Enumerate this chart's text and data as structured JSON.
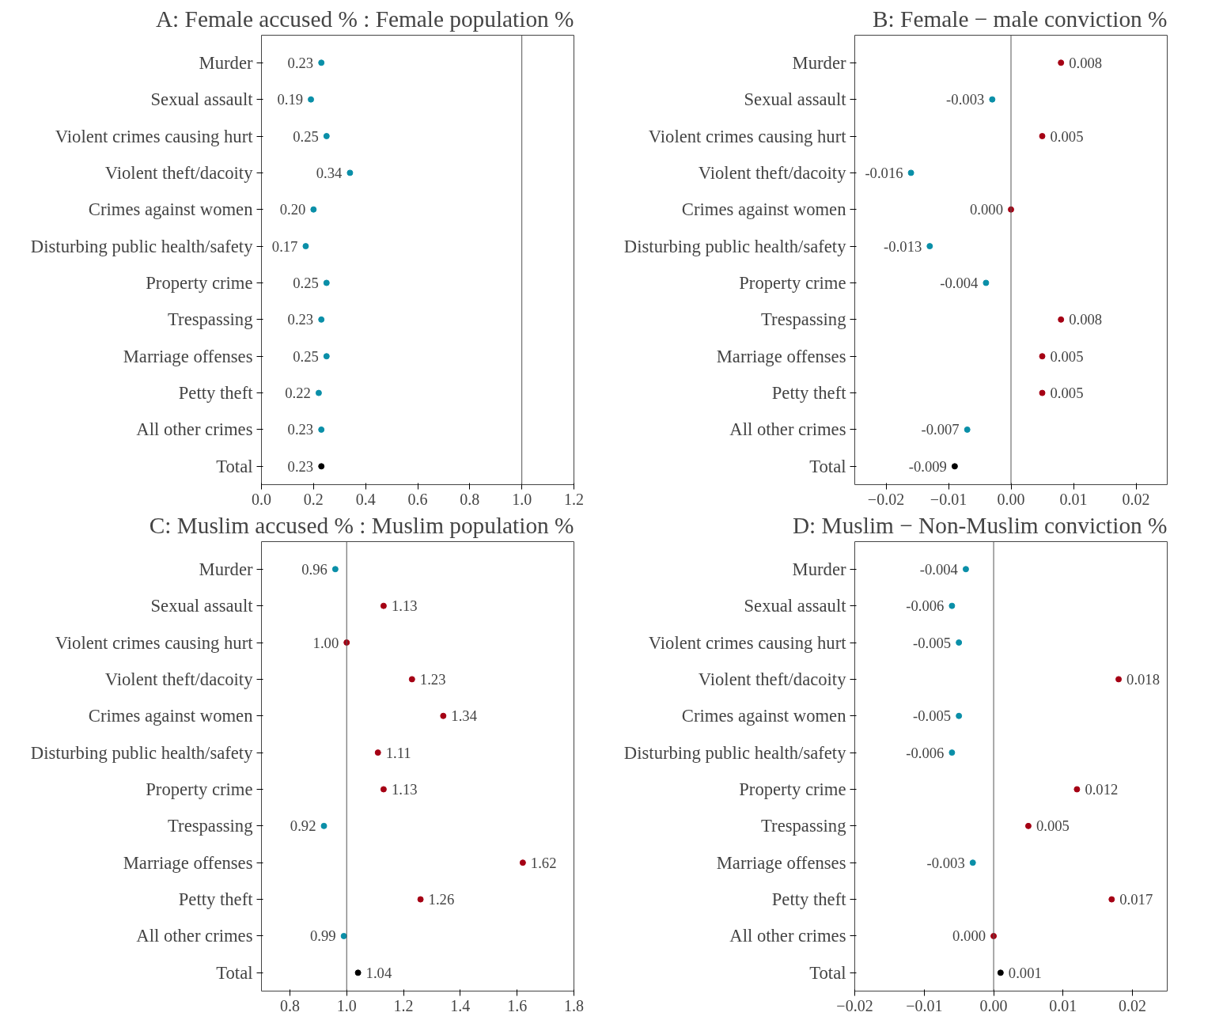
{
  "chart_data": [
    {
      "type": "scatter",
      "title": "A: Female accused % : Female population %",
      "orientation": "horizontal",
      "categories": [
        "Murder",
        "Sexual assault",
        "Violent crimes causing hurt",
        "Violent theft/dacoity",
        "Crimes against women",
        "Disturbing public health/safety",
        "Property crime",
        "Trespassing",
        "Marriage offenses",
        "Petty theft",
        "All other crimes",
        "Total"
      ],
      "values": [
        0.23,
        0.19,
        0.25,
        0.34,
        0.2,
        0.17,
        0.25,
        0.23,
        0.25,
        0.22,
        0.23,
        0.23
      ],
      "value_labels": [
        "0.23",
        "0.19",
        "0.25",
        "0.34",
        "0.20",
        "0.17",
        "0.25",
        "0.23",
        "0.25",
        "0.22",
        "0.23",
        "0.23"
      ],
      "colors": [
        "#0a8fa8",
        "#0a8fa8",
        "#0a8fa8",
        "#0a8fa8",
        "#0a8fa8",
        "#0a8fa8",
        "#0a8fa8",
        "#0a8fa8",
        "#0a8fa8",
        "#0a8fa8",
        "#0a8fa8",
        "#000000"
      ],
      "xlim": [
        0.0,
        1.2
      ],
      "xticks": [
        {
          "value": 0.0,
          "label": "0.0"
        },
        {
          "value": 0.2,
          "label": "0.2"
        },
        {
          "value": 0.4,
          "label": "0.4"
        },
        {
          "value": 0.6,
          "label": "0.6"
        },
        {
          "value": 0.8,
          "label": "0.8"
        },
        {
          "value": 1.0,
          "label": "1.0"
        },
        {
          "value": 1.2,
          "label": "1.2"
        }
      ],
      "ref_lines": [
        {
          "axis": "x",
          "value": 1.0,
          "color": "#555555",
          "line_style": "solid"
        }
      ],
      "marker": "circle",
      "grid": false
    },
    {
      "type": "scatter",
      "title": "B: Female − male conviction %",
      "orientation": "horizontal",
      "categories": [
        "Murder",
        "Sexual assault",
        "Violent crimes causing hurt",
        "Violent theft/dacoity",
        "Crimes against women",
        "Disturbing public health/safety",
        "Property crime",
        "Trespassing",
        "Marriage offenses",
        "Petty theft",
        "All other crimes",
        "Total"
      ],
      "values": [
        0.008,
        -0.003,
        0.005,
        -0.016,
        0.0,
        -0.013,
        -0.004,
        0.008,
        0.005,
        0.005,
        -0.007,
        -0.009
      ],
      "value_labels": [
        "0.008",
        "-0.003",
        "0.005",
        "-0.016",
        "0.000",
        "-0.013",
        "-0.004",
        "0.008",
        "0.005",
        "0.005",
        "-0.007",
        "-0.009"
      ],
      "colors": [
        "#a50014",
        "#0a8fa8",
        "#a50014",
        "#0a8fa8",
        "#a50014",
        "#0a8fa8",
        "#0a8fa8",
        "#a50014",
        "#a50014",
        "#a50014",
        "#0a8fa8",
        "#000000"
      ],
      "xlim": [
        -0.025,
        0.025
      ],
      "xticks": [
        {
          "value": -0.02,
          "label": "−0.02"
        },
        {
          "value": -0.01,
          "label": "−0.01"
        },
        {
          "value": 0.0,
          "label": "0.00"
        },
        {
          "value": 0.01,
          "label": "0.01"
        },
        {
          "value": 0.02,
          "label": "0.02"
        }
      ],
      "ref_lines": [
        {
          "axis": "x",
          "value": 0.0,
          "color": "#555555",
          "line_style": "solid"
        }
      ],
      "marker": "circle",
      "grid": false
    },
    {
      "type": "scatter",
      "title": "C: Muslim accused % : Muslim population %",
      "orientation": "horizontal",
      "categories": [
        "Murder",
        "Sexual assault",
        "Violent crimes causing hurt",
        "Violent theft/dacoity",
        "Crimes against women",
        "Disturbing public health/safety",
        "Property crime",
        "Trespassing",
        "Marriage offenses",
        "Petty theft",
        "All other crimes",
        "Total"
      ],
      "values": [
        0.96,
        1.13,
        1.0,
        1.23,
        1.34,
        1.11,
        1.13,
        0.92,
        1.62,
        1.26,
        0.99,
        1.04
      ],
      "value_labels": [
        "0.96",
        "1.13",
        "1.00",
        "1.23",
        "1.34",
        "1.11",
        "1.13",
        "0.92",
        "1.62",
        "1.26",
        "0.99",
        "1.04"
      ],
      "colors": [
        "#0a8fa8",
        "#a50014",
        "#a50014",
        "#a50014",
        "#a50014",
        "#a50014",
        "#a50014",
        "#0a8fa8",
        "#a50014",
        "#a50014",
        "#0a8fa8",
        "#000000"
      ],
      "xlim": [
        0.7,
        1.8
      ],
      "xticks": [
        {
          "value": 0.8,
          "label": "0.8"
        },
        {
          "value": 1.0,
          "label": "1.0"
        },
        {
          "value": 1.2,
          "label": "1.2"
        },
        {
          "value": 1.4,
          "label": "1.4"
        },
        {
          "value": 1.6,
          "label": "1.6"
        },
        {
          "value": 1.8,
          "label": "1.8"
        }
      ],
      "ref_lines": [
        {
          "axis": "x",
          "value": 1.0,
          "color": "#555555",
          "line_style": "solid"
        }
      ],
      "marker": "circle",
      "grid": false
    },
    {
      "type": "scatter",
      "title": "D: Muslim − Non-Muslim conviction %",
      "orientation": "horizontal",
      "categories": [
        "Murder",
        "Sexual assault",
        "Violent crimes causing hurt",
        "Violent theft/dacoity",
        "Crimes against women",
        "Disturbing public health/safety",
        "Property crime",
        "Trespassing",
        "Marriage offenses",
        "Petty theft",
        "All other crimes",
        "Total"
      ],
      "values": [
        -0.004,
        -0.006,
        -0.005,
        0.018,
        -0.005,
        -0.006,
        0.012,
        0.005,
        -0.003,
        0.017,
        0.0,
        0.001
      ],
      "value_labels": [
        "-0.004",
        "-0.006",
        "-0.005",
        "0.018",
        "-0.005",
        "-0.006",
        "0.012",
        "0.005",
        "-0.003",
        "0.017",
        "0.000",
        "0.001"
      ],
      "colors": [
        "#0a8fa8",
        "#0a8fa8",
        "#0a8fa8",
        "#a50014",
        "#0a8fa8",
        "#0a8fa8",
        "#a50014",
        "#a50014",
        "#0a8fa8",
        "#a50014",
        "#a50014",
        "#000000"
      ],
      "xlim": [
        -0.02,
        0.025
      ],
      "xticks": [
        {
          "value": -0.02,
          "label": "−0.02"
        },
        {
          "value": -0.01,
          "label": "−0.01"
        },
        {
          "value": 0.0,
          "label": "0.00"
        },
        {
          "value": 0.01,
          "label": "0.01"
        },
        {
          "value": 0.02,
          "label": "0.02"
        }
      ],
      "ref_lines": [
        {
          "axis": "x",
          "value": 0.0,
          "color": "#555555",
          "line_style": "solid"
        }
      ],
      "marker": "circle",
      "grid": false
    }
  ]
}
